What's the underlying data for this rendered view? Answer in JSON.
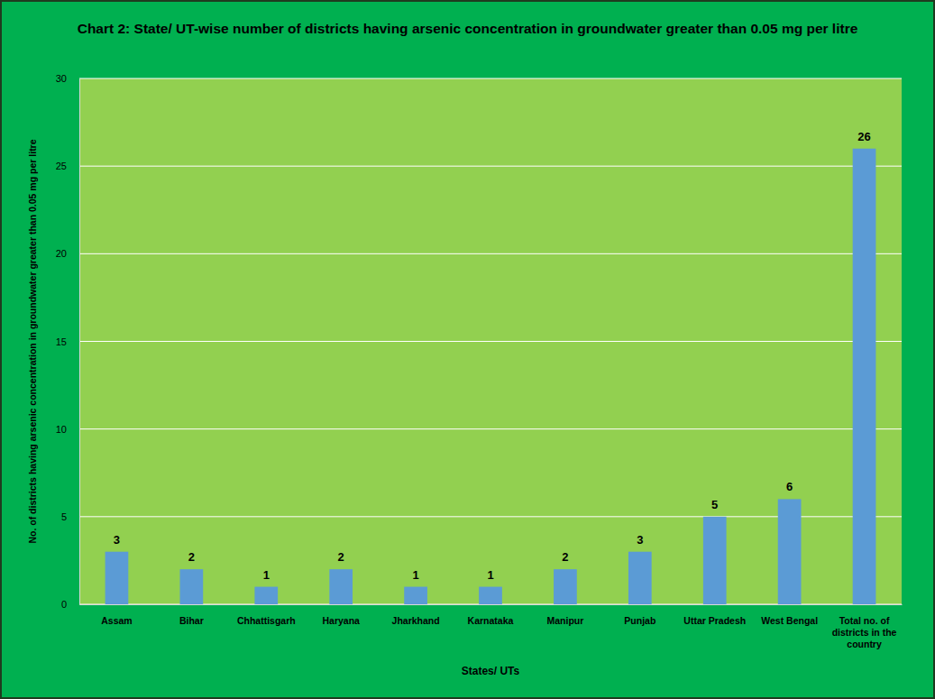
{
  "chart_data": {
    "type": "bar",
    "title": "Chart 2: State/ UT-wise number of districts having arsenic concentration in groundwater greater than 0.05 mg per litre",
    "x_label": "States/ UTs",
    "y_label": "No. of districts having arsenic concentration in groundwater greater than 0.05 mg per litre",
    "categories": [
      "Assam",
      "Bihar",
      "Chhattisgarh",
      "Haryana",
      "Jharkhand",
      "Karnataka",
      "Manipur",
      "Punjab",
      "Uttar Pradesh",
      "West Bengal",
      "Total no. of districts in the country"
    ],
    "values": [
      3,
      2,
      1,
      2,
      1,
      1,
      2,
      3,
      5,
      6,
      26
    ],
    "color": "#5b9bd5",
    "ylim": [
      0,
      30
    ],
    "yticks": [
      0,
      5,
      10,
      15,
      20,
      25,
      30
    ],
    "grid": true,
    "data_labels": true
  }
}
